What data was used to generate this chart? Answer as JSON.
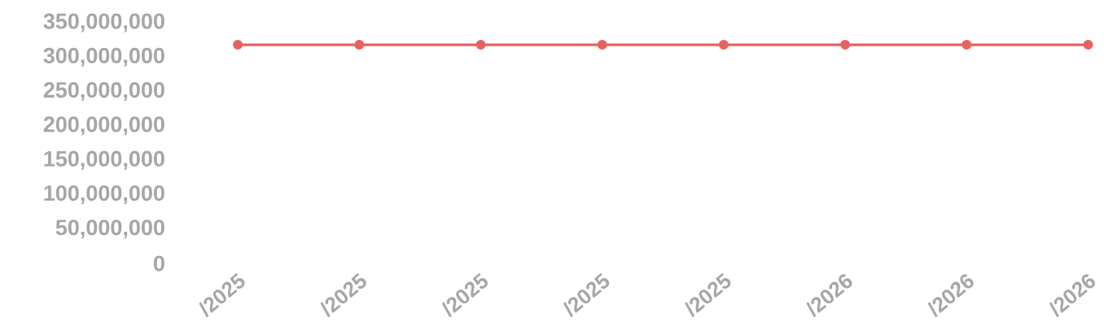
{
  "chart_data": {
    "type": "line",
    "categories": [
      "/2025",
      "/2025",
      "/2025",
      "/2025",
      "/2025",
      "/2026",
      "/2026",
      "/2026"
    ],
    "series": [
      {
        "color": "#e86262",
        "values": [
          318000000,
          318000000,
          318000000,
          318000000,
          318000000,
          318000000,
          318000000,
          318000000
        ]
      }
    ],
    "ylim": [
      0,
      350000000
    ],
    "yticks": [
      {
        "value": 0,
        "label": "0"
      },
      {
        "value": 50000000,
        "label": "50,000,000"
      },
      {
        "value": 100000000,
        "label": "100,000,000"
      },
      {
        "value": 150000000,
        "label": "150,000,000"
      },
      {
        "value": 200000000,
        "label": "200,000,000"
      },
      {
        "value": 250000000,
        "label": "250,000,000"
      },
      {
        "value": 300000000,
        "label": "300,000,000"
      },
      {
        "value": 350000000,
        "label": "350,000,000"
      }
    ],
    "marker": "circle",
    "line_style": "solid"
  }
}
